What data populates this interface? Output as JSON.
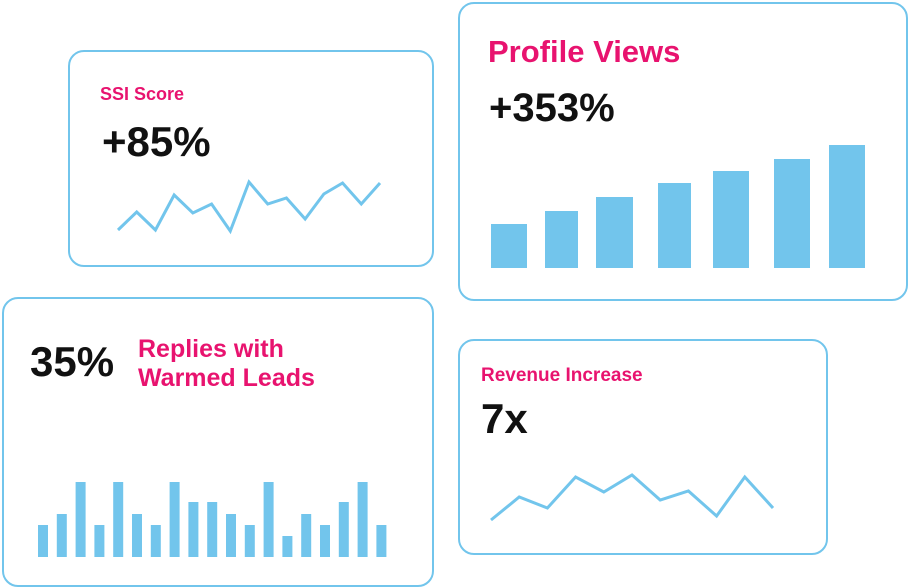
{
  "colors": {
    "accent": "#e8136f",
    "chart": "#72c5ec"
  },
  "ssi": {
    "label": "SSI Score",
    "value": "+85%",
    "trend": [
      40,
      58,
      40,
      75,
      57,
      66,
      39,
      88,
      66,
      72,
      51,
      76,
      87,
      66,
      87
    ]
  },
  "profile": {
    "label": "Profile Views",
    "value": "+353%",
    "bars": [
      44,
      57,
      71,
      85,
      97,
      109,
      123
    ]
  },
  "replies": {
    "value": "35%",
    "label_line1": "Replies with",
    "label_line2": "Warmed Leads",
    "bars": [
      32,
      43,
      75,
      32,
      75,
      43,
      32,
      75,
      55,
      55,
      43,
      32,
      75,
      21,
      43,
      32,
      55,
      75,
      32
    ]
  },
  "revenue": {
    "label": "Revenue Increase",
    "value": "7x",
    "trend": [
      40,
      63,
      52,
      83,
      68,
      85,
      60,
      69,
      44,
      83,
      52
    ]
  }
}
